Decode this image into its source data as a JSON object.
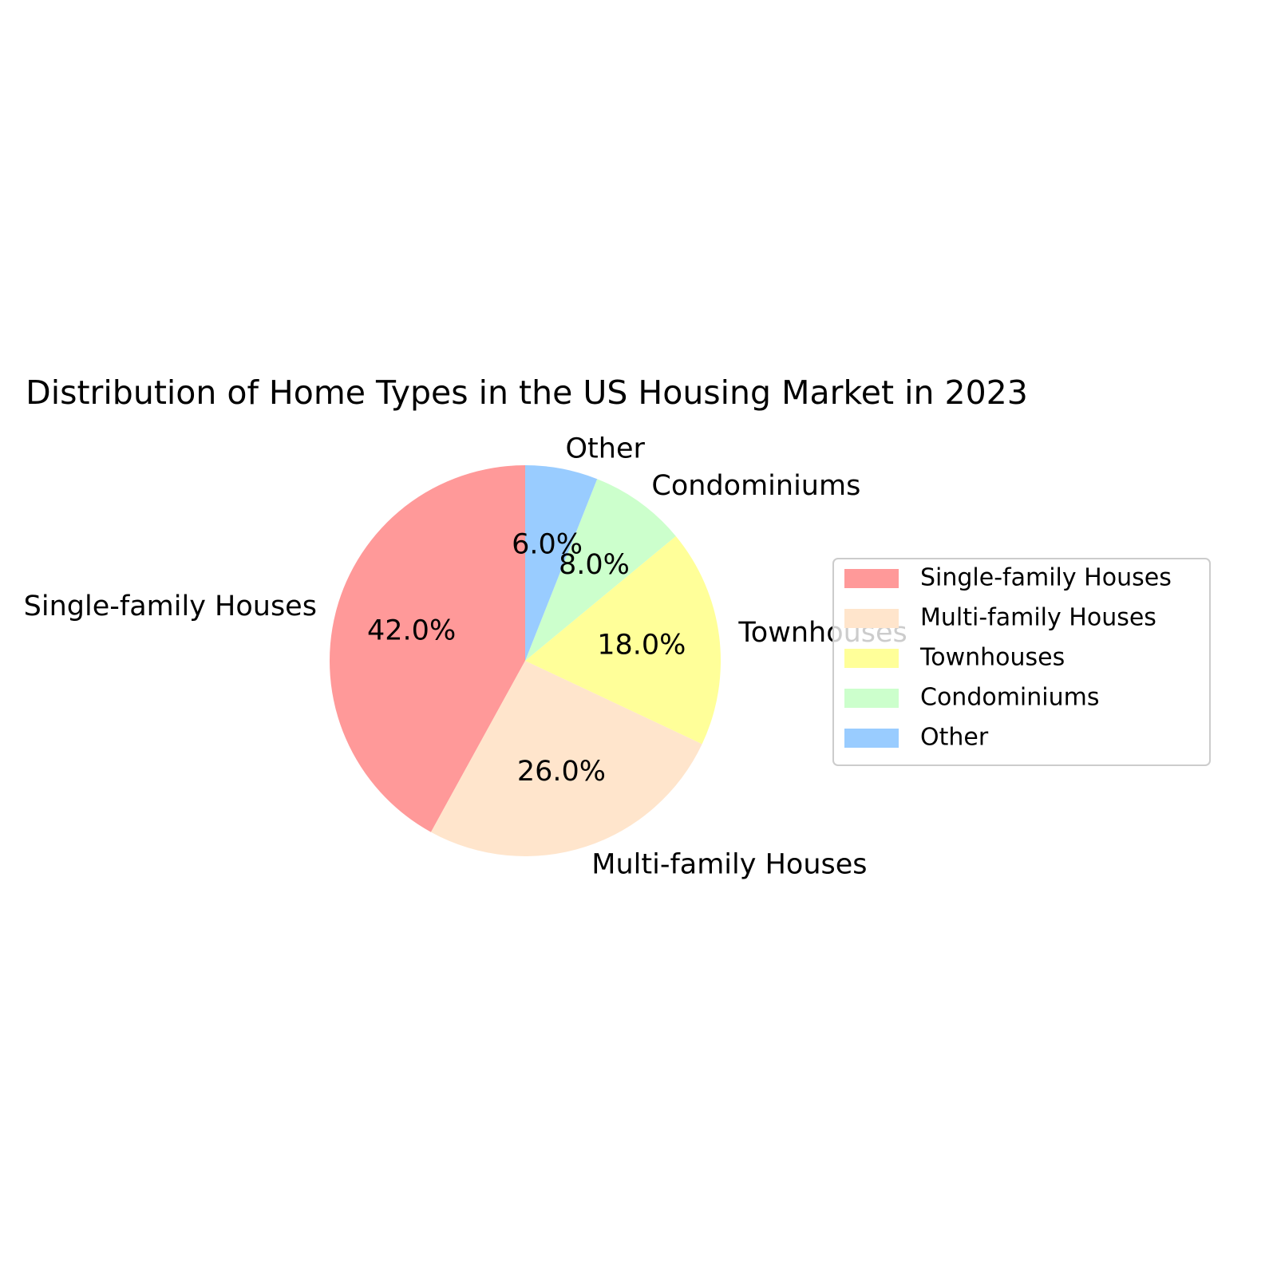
{
  "chart_data": {
    "type": "pie",
    "title": "Distribution of Home Types in the US Housing Market in 2023",
    "categories": [
      "Single-family Houses",
      "Multi-family Houses",
      "Townhouses",
      "Condominiums",
      "Other"
    ],
    "values": [
      42,
      26,
      18,
      8,
      6
    ],
    "value_labels": [
      "42.0%",
      "26.0%",
      "18.0%",
      "8.0%",
      "6.0%"
    ],
    "colors": [
      "#ff9999",
      "#ffe5cc",
      "#ffff99",
      "#ccffcc",
      "#99ccff"
    ],
    "start_angle_deg": 90,
    "direction": "counterclockwise",
    "legend": {
      "placement": "right",
      "entries": [
        "Single-family Houses",
        "Multi-family Houses",
        "Townhouses",
        "Condominiums",
        "Other"
      ]
    }
  }
}
